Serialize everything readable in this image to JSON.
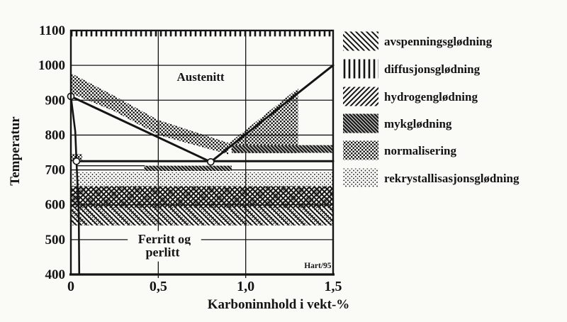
{
  "page": {
    "background": "#fafaf7",
    "ink": "#141414",
    "credit": "Hart/95"
  },
  "chart_data": {
    "type": "line",
    "subtype": "iron-carbon-phase-diagram-with-annealing-bands",
    "title": "",
    "xlabel": "Karboninnhold i vekt-%",
    "ylabel": "Temperatur",
    "xlim": [
      0,
      1.5
    ],
    "ylim": [
      400,
      1100
    ],
    "grid": {
      "h": [
        500,
        600,
        700,
        800,
        900,
        1000
      ],
      "v": [
        0.5,
        1.0
      ]
    },
    "x_ticks": [
      {
        "v": 0,
        "label": "0"
      },
      {
        "v": 0.5,
        "label": "0,5"
      },
      {
        "v": 1.0,
        "label": "1,0"
      },
      {
        "v": 1.5,
        "label": "1,5"
      }
    ],
    "y_ticks": [
      {
        "v": 400,
        "label": "400"
      },
      {
        "v": 500,
        "label": "500"
      },
      {
        "v": 600,
        "label": "600"
      },
      {
        "v": 700,
        "label": "700"
      },
      {
        "v": 800,
        "label": "800"
      },
      {
        "v": 900,
        "label": "900"
      },
      {
        "v": 1000,
        "label": "1000"
      },
      {
        "v": 1100,
        "label": "1100"
      }
    ],
    "lines": [
      {
        "name": "A3-boundary",
        "points": [
          [
            0,
            911
          ],
          [
            0.8,
            723
          ]
        ],
        "width": 3
      },
      {
        "name": "Acm-boundary",
        "points": [
          [
            0.8,
            723
          ],
          [
            1.5,
            1000
          ]
        ],
        "width": 3
      },
      {
        "name": "A1-boundary",
        "points": [
          [
            0.032,
            725
          ],
          [
            1.5,
            725
          ]
        ],
        "width": 3
      },
      {
        "name": "ferrite-solvus",
        "points": [
          [
            0,
            911
          ],
          [
            0.025,
            810
          ],
          [
            0.032,
            725
          ],
          [
            0.045,
            580
          ],
          [
            0.048,
            400
          ]
        ],
        "width": 2.6
      },
      {
        "name": "mykglodning-upper-bound",
        "points": [
          [
            0.032,
            712
          ],
          [
            0.42,
            712
          ]
        ],
        "width": 1.3
      }
    ],
    "markers": [
      {
        "c": 0,
        "t": 911
      },
      {
        "c": 0.032,
        "t": 725
      },
      {
        "c": 0.8,
        "t": 723
      }
    ],
    "bands": [
      {
        "name": "diffusjonsglødning",
        "pattern": "vlines",
        "shape": "rect",
        "c": [
          0,
          1.5
        ],
        "t": [
          1083,
          1100
        ]
      },
      {
        "name": "normalisering",
        "pattern": "dots-med",
        "shape": "polygon",
        "points": [
          [
            0,
            978
          ],
          [
            0.25,
            912
          ],
          [
            0.5,
            843
          ],
          [
            0.9,
            778
          ],
          [
            0.9,
            745
          ],
          [
            0.5,
            800
          ],
          [
            0.25,
            868
          ],
          [
            0,
            920
          ]
        ]
      },
      {
        "name": "normalisering",
        "pattern": "dots-med",
        "shape": "polygon",
        "points": [
          [
            0.9,
            775
          ],
          [
            1.3,
            935
          ],
          [
            1.3,
            748
          ],
          [
            0.93,
            748
          ]
        ]
      },
      {
        "name": "normalisering",
        "pattern": "dots-med",
        "shape": "rect",
        "c": [
          0,
          0.065
        ],
        "t": [
          723,
          746
        ]
      },
      {
        "name": "rekrystallisasjonsglødning",
        "pattern": "dots-light",
        "shape": "rect",
        "c": [
          0,
          1.5
        ],
        "t": [
          541,
          693
        ]
      },
      {
        "name": "hydrogenglødning",
        "pattern": "fslash",
        "shape": "rect",
        "c": [
          0,
          1.5
        ],
        "t": [
          592,
          653
        ]
      },
      {
        "name": "avspenningsglødning",
        "pattern": "bslash",
        "shape": "rect",
        "c": [
          0,
          1.5
        ],
        "t": [
          541,
          653
        ]
      },
      {
        "name": "mykglødning",
        "pattern": "dark",
        "shape": "rect",
        "c": [
          0.42,
          0.92
        ],
        "t": [
          697,
          712
        ]
      },
      {
        "name": "mykglødning",
        "pattern": "dark",
        "shape": "rect",
        "c": [
          0.92,
          1.5
        ],
        "t": [
          749,
          771
        ]
      }
    ],
    "region_labels": [
      {
        "text": "Austenitt",
        "c": 0.742,
        "t": 956,
        "size": 17,
        "anchor": "middle",
        "mask": false
      },
      {
        "text": "Ferritt og",
        "c": 0.535,
        "t": 490,
        "size": 18,
        "anchor": "middle",
        "mask": true
      },
      {
        "text": "perlitt",
        "c": 0.525,
        "t": 452,
        "size": 18,
        "anchor": "middle",
        "mask": true
      },
      {
        "text": "Hart/95",
        "c": 1.49,
        "t": 418,
        "size": 11.5,
        "anchor": "end",
        "mask": false
      }
    ],
    "legend": {
      "position": "right",
      "items": [
        {
          "label": "avspenningsglødning",
          "pattern": "bslash"
        },
        {
          "label": "diffusjonsglødning",
          "pattern": "vlines"
        },
        {
          "label": "hydrogenglødning",
          "pattern": "fslash"
        },
        {
          "label": "mykglødning",
          "pattern": "dark"
        },
        {
          "label": "normalisering",
          "pattern": "dots-med"
        },
        {
          "label": "rekrystallisasjonsglødning",
          "pattern": "dots-light"
        }
      ]
    }
  }
}
